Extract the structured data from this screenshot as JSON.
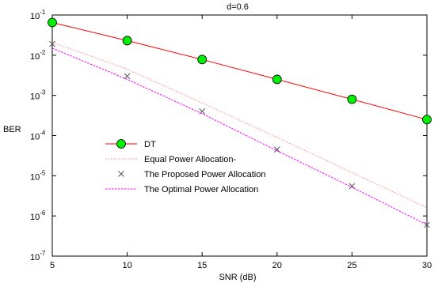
{
  "chart_data": {
    "type": "line",
    "title": "d=0.6",
    "xlabel": "SNR (dB)",
    "ylabel": "BER",
    "xlim": [
      5,
      30
    ],
    "ylim": [
      1e-07,
      0.1
    ],
    "yscale": "log",
    "x_ticks": [
      5,
      10,
      15,
      20,
      25,
      30
    ],
    "y_ticks": [
      {
        "value": 1e-07,
        "base": "10",
        "exp": "-7"
      },
      {
        "value": 1e-06,
        "base": "10",
        "exp": "-6"
      },
      {
        "value": 1e-05,
        "base": "10",
        "exp": "-5"
      },
      {
        "value": 0.0001,
        "base": "10",
        "exp": "-4"
      },
      {
        "value": 0.001,
        "base": "10",
        "exp": "-3"
      },
      {
        "value": 0.01,
        "base": "10",
        "exp": "-2"
      },
      {
        "value": 0.1,
        "base": "10",
        "exp": "-1"
      }
    ],
    "grid": false,
    "legend_position": "center-left",
    "series": [
      {
        "name": "DT",
        "color": "#ff0000",
        "line_style": "solid",
        "marker": "circle",
        "marker_color": "#00ee00",
        "x": [
          5,
          10,
          15,
          20,
          25,
          30
        ],
        "y": [
          0.065,
          0.023,
          0.0078,
          0.0025,
          0.0008,
          0.00025
        ]
      },
      {
        "name": "Equal Power Allocation-",
        "color": "#ff8080",
        "line_style": "dotted",
        "marker": "none",
        "x": [
          5,
          10,
          15,
          20,
          25,
          30
        ],
        "y": [
          0.021,
          0.0045,
          0.00065,
          9e-05,
          1.2e-05,
          1.6e-06
        ]
      },
      {
        "name": "The Proposed Power Allocation",
        "color": "#555555",
        "line_style": "none",
        "marker": "x",
        "x": [
          5,
          10,
          15,
          20,
          25,
          30
        ],
        "y": [
          0.019,
          0.003,
          0.0004,
          4.5e-05,
          5.5e-06,
          6e-07
        ]
      },
      {
        "name": "The Optimal Power Allocation",
        "color": "#ff00ff",
        "line_style": "dashed",
        "marker": "none",
        "x": [
          5,
          10,
          15,
          20,
          25,
          30
        ],
        "y": [
          0.015,
          0.0025,
          0.00035,
          4.2e-05,
          5.2e-06,
          6e-07
        ]
      }
    ]
  }
}
